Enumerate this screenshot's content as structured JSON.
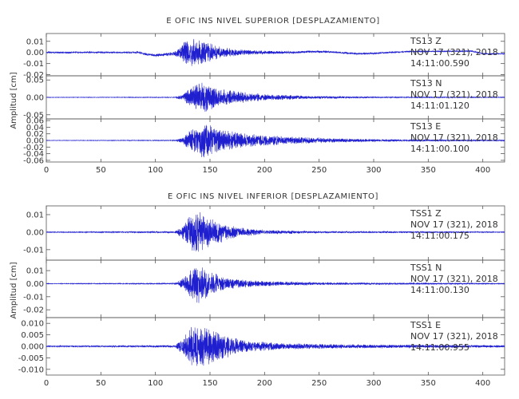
{
  "chart_data": [
    {
      "type": "line",
      "title": "E OFIC INS NIVEL SUPERIOR [DESPLAZAMIENTO]",
      "ylabel": "Amplitud [cm]",
      "xlim": [
        0,
        420
      ],
      "xticks": [
        "0",
        "50",
        "100",
        "150",
        "200",
        "250",
        "300",
        "350",
        "400"
      ],
      "panels": [
        {
          "station": "TS13",
          "component": "Z",
          "date": "NOV 17 (321), 2018",
          "time": "14:11:00.590",
          "ylim": [
            -0.021,
            0.017
          ],
          "yticks": [
            0.01,
            0.0,
            -0.01,
            -0.02
          ],
          "ytick_labels": [
            "0.01",
            "0.00",
            "-0.01",
            "-0.02"
          ],
          "color": "#1f1fd0",
          "envelope": [
            [
              0,
              0.0008
            ],
            [
              80,
              0.0008
            ],
            [
              90,
              0.0012
            ],
            [
              115,
              0.0015
            ],
            [
              122,
              0.004
            ],
            [
              127,
              0.0125
            ],
            [
              133,
              0.0125
            ],
            [
              140,
              0.0115
            ],
            [
              150,
              0.0085
            ],
            [
              160,
              0.005
            ],
            [
              175,
              0.003
            ],
            [
              200,
              0.0015
            ],
            [
              240,
              0.001
            ],
            [
              300,
              0.0008
            ],
            [
              420,
              0.0005
            ]
          ],
          "baseline": [
            [
              0,
              0.0
            ],
            [
              85,
              0.0
            ],
            [
              92,
              -0.0018
            ],
            [
              100,
              -0.0025
            ],
            [
              115,
              -0.0015
            ],
            [
              125,
              0.0
            ],
            [
              230,
              0.0
            ],
            [
              240,
              0.0008
            ],
            [
              260,
              0.0005
            ],
            [
              285,
              -0.0012
            ],
            [
              300,
              -0.0008
            ],
            [
              330,
              0.0008
            ],
            [
              390,
              0.0012
            ],
            [
              400,
              -0.0012
            ],
            [
              420,
              -0.0012
            ]
          ]
        },
        {
          "station": "TS13",
          "component": "N",
          "date": "NOV 17 (321), 2018",
          "time": "14:11:01.120",
          "ylim": [
            -0.062,
            0.062
          ],
          "yticks": [
            0.05,
            0.0,
            -0.05
          ],
          "ytick_labels": [
            "0.05",
            "0.00",
            "-0.05"
          ],
          "color": "#1f1fd0",
          "envelope": [
            [
              0,
              0.0008
            ],
            [
              118,
              0.0012
            ],
            [
              125,
              0.01
            ],
            [
              133,
              0.03
            ],
            [
              140,
              0.043
            ],
            [
              145,
              0.045
            ],
            [
              152,
              0.034
            ],
            [
              160,
              0.025
            ],
            [
              175,
              0.018
            ],
            [
              200,
              0.009
            ],
            [
              250,
              0.004
            ],
            [
              300,
              0.002
            ],
            [
              420,
              0.0012
            ]
          ]
        },
        {
          "station": "TS13",
          "component": "E",
          "date": "NOV 17 (321), 2018",
          "time": "14:11:00.100",
          "ylim": [
            -0.065,
            0.065
          ],
          "yticks": [
            0.06,
            0.04,
            0.02,
            0.0,
            -0.02,
            -0.04,
            -0.06
          ],
          "ytick_labels": [
            "0.06",
            "0.04",
            "0.02",
            "0.00",
            "-0.02",
            "-0.04",
            "-0.06"
          ],
          "color": "#1f1fd0",
          "envelope": [
            [
              0,
              0.0008
            ],
            [
              118,
              0.0015
            ],
            [
              125,
              0.01
            ],
            [
              133,
              0.035
            ],
            [
              140,
              0.045
            ],
            [
              145,
              0.06
            ],
            [
              152,
              0.045
            ],
            [
              165,
              0.03
            ],
            [
              180,
              0.022
            ],
            [
              200,
              0.017
            ],
            [
              230,
              0.011
            ],
            [
              260,
              0.007
            ],
            [
              300,
              0.004
            ],
            [
              350,
              0.003
            ],
            [
              420,
              0.002
            ]
          ]
        }
      ]
    },
    {
      "type": "line",
      "title": "E OFIC INS NIVEL INFERIOR [DESPLAZAMIENTO]",
      "ylabel": "Amplitud [cm]",
      "xlim": [
        0,
        420
      ],
      "xticks": [
        "0",
        "50",
        "100",
        "150",
        "200",
        "250",
        "300",
        "350",
        "400"
      ],
      "panels": [
        {
          "station": "TSS1",
          "component": "Z",
          "date": "NOV 17 (321), 2018",
          "time": "14:11:00.175",
          "ylim": [
            -0.016,
            0.015
          ],
          "yticks": [
            0.01,
            0.0,
            -0.01
          ],
          "ytick_labels": [
            "0.01",
            "0.00",
            "-0.01"
          ],
          "color": "#1f1fd0",
          "envelope": [
            [
              0,
              0.0003
            ],
            [
              118,
              0.0005
            ],
            [
              125,
              0.004
            ],
            [
              133,
              0.012
            ],
            [
              140,
              0.012
            ],
            [
              148,
              0.009
            ],
            [
              160,
              0.006
            ],
            [
              175,
              0.003
            ],
            [
              200,
              0.0012
            ],
            [
              250,
              0.0006
            ],
            [
              420,
              0.0003
            ]
          ]
        },
        {
          "station": "TSS1",
          "component": "N",
          "date": "NOV 17 (321), 2018",
          "time": "14:11:00.130",
          "ylim": [
            -0.026,
            0.018
          ],
          "yticks": [
            0.01,
            0.0,
            -0.01,
            -0.02
          ],
          "ytick_labels": [
            "0.01",
            "0.00",
            "-0.01",
            "-0.02"
          ],
          "color": "#1f1fd0",
          "envelope": [
            [
              0,
              0.0003
            ],
            [
              118,
              0.0005
            ],
            [
              125,
              0.004
            ],
            [
              133,
              0.012
            ],
            [
              138,
              0.016
            ],
            [
              145,
              0.012
            ],
            [
              155,
              0.008
            ],
            [
              170,
              0.004
            ],
            [
              200,
              0.002
            ],
            [
              250,
              0.001
            ],
            [
              420,
              0.0004
            ]
          ]
        },
        {
          "station": "TSS1",
          "component": "E",
          "date": "NOV 17 (321), 2018",
          "time": "14:11:00.955",
          "ylim": [
            -0.0125,
            0.0125
          ],
          "yticks": [
            0.01,
            0.005,
            0.0,
            -0.005,
            -0.01
          ],
          "ytick_labels": [
            "0.010",
            "0.005",
            "0.000",
            "-0.005",
            "-0.010"
          ],
          "color": "#1f1fd0",
          "envelope": [
            [
              0,
              0.0003
            ],
            [
              118,
              0.0005
            ],
            [
              125,
              0.004
            ],
            [
              133,
              0.009
            ],
            [
              140,
              0.009
            ],
            [
              148,
              0.0095
            ],
            [
              155,
              0.007
            ],
            [
              165,
              0.005
            ],
            [
              185,
              0.0025
            ],
            [
              220,
              0.0013
            ],
            [
              300,
              0.0008
            ],
            [
              420,
              0.0005
            ]
          ]
        }
      ]
    }
  ]
}
